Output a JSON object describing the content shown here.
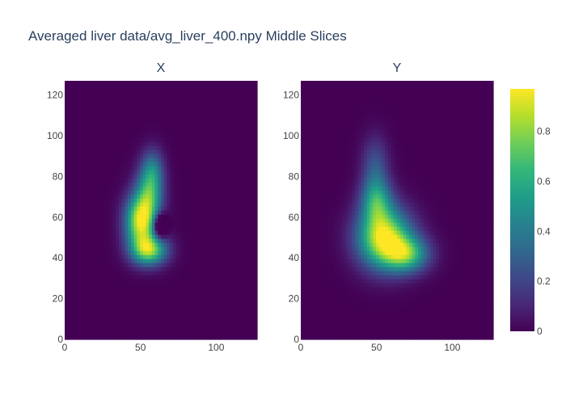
{
  "title": "Averaged liver data/avg_liver_400.npy Middle Slices",
  "chart_data": [
    {
      "type": "heatmap",
      "subplot_title": "X",
      "x_ticks": [
        "0",
        "50",
        "100"
      ],
      "y_ticks": [
        "0",
        "20",
        "40",
        "60",
        "80",
        "100",
        "120"
      ],
      "xlim": [
        0,
        127
      ],
      "ylim": [
        0,
        127
      ],
      "background_value": 0,
      "blobs": [
        {
          "cx": 50,
          "cy": 58,
          "sx": 7,
          "sy": 9,
          "amp": 0.9
        },
        {
          "cx": 56,
          "cy": 44,
          "sx": 8,
          "sy": 5,
          "amp": 0.75
        },
        {
          "cx": 56,
          "cy": 72,
          "sx": 6,
          "sy": 9,
          "amp": 0.55
        },
        {
          "cx": 58,
          "cy": 84,
          "sx": 5,
          "sy": 7,
          "amp": 0.3
        },
        {
          "cx": 63,
          "cy": 56,
          "sx": 3,
          "sy": 4,
          "amp": -0.55
        }
      ]
    },
    {
      "type": "heatmap",
      "subplot_title": "Y",
      "x_ticks": [
        "0",
        "50",
        "100"
      ],
      "y_ticks": [
        "0",
        "20",
        "40",
        "60",
        "80",
        "100",
        "120"
      ],
      "xlim": [
        0,
        127
      ],
      "ylim": [
        0,
        127
      ],
      "background_value": 0,
      "blobs": [
        {
          "cx": 55,
          "cy": 50,
          "sx": 12,
          "sy": 10,
          "amp": 0.95
        },
        {
          "cx": 70,
          "cy": 42,
          "sx": 10,
          "sy": 6,
          "amp": 0.6
        },
        {
          "cx": 50,
          "cy": 68,
          "sx": 7,
          "sy": 8,
          "amp": 0.5
        },
        {
          "cx": 49,
          "cy": 85,
          "sx": 6,
          "sy": 10,
          "amp": 0.25
        }
      ]
    }
  ],
  "colorbar": {
    "colorscale": "Viridis",
    "range": [
      0,
      0.97
    ],
    "ticks": [
      "0",
      "0.2",
      "0.4",
      "0.6",
      "0.8"
    ],
    "colors": [
      "#440154",
      "#482878",
      "#3e4989",
      "#31688e",
      "#26828e",
      "#1f9e89",
      "#35b779",
      "#6ece58",
      "#b5de2b",
      "#fde725"
    ]
  }
}
